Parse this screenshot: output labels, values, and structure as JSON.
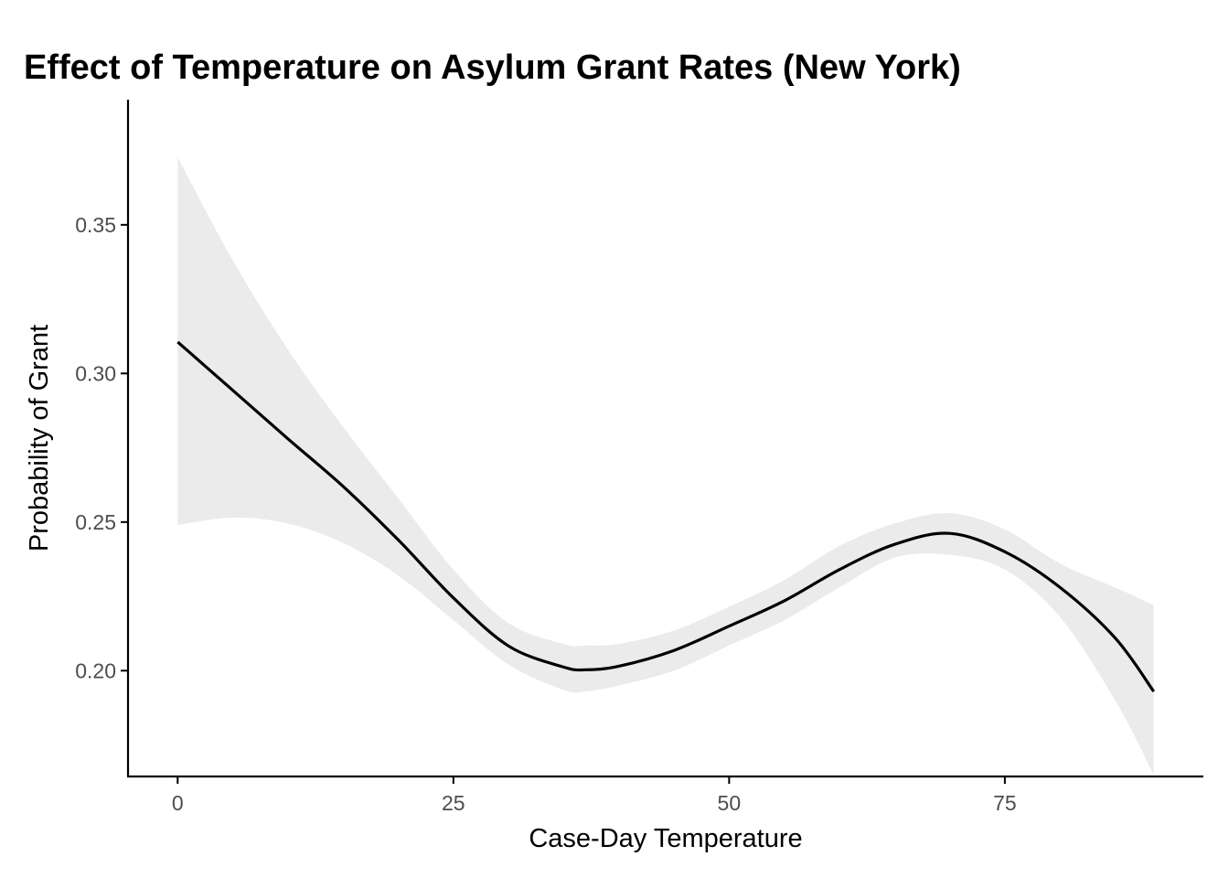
{
  "chart_data": {
    "type": "line",
    "title": "Effect of Temperature on Asylum Grant Rates (New York)",
    "xlabel": "Case-Day Temperature",
    "ylabel": "Probability of Grant",
    "xlim": [
      -4.5,
      93
    ],
    "ylim": [
      0.1644,
      0.3921
    ],
    "x_ticks": [
      0,
      25,
      50,
      75
    ],
    "x_tick_labels": [
      "0",
      "25",
      "50",
      "75"
    ],
    "y_ticks": [
      0.2,
      0.25,
      0.3,
      0.35
    ],
    "y_tick_labels": [
      "0.20",
      "0.25",
      "0.30",
      "0.35"
    ],
    "grid": false,
    "legend": "none",
    "colors": {
      "line": "#000000",
      "band": "#ebebeb",
      "axis": "#000000",
      "tick_label": "#4d4d4d"
    },
    "series": [
      {
        "x": [
          0,
          5,
          10,
          15,
          20,
          25,
          30,
          35,
          37,
          40,
          45,
          50,
          55,
          60,
          65,
          70,
          75,
          80,
          85,
          88.5
        ],
        "y": [
          0.3106,
          0.2943,
          0.278,
          0.262,
          0.244,
          0.2245,
          0.2083,
          0.2012,
          0.2003,
          0.2015,
          0.2068,
          0.215,
          0.2235,
          0.234,
          0.2425,
          0.2462,
          0.24,
          0.228,
          0.211,
          0.193
        ],
        "ci_lower": [
          0.249,
          0.2515,
          0.2495,
          0.243,
          0.232,
          0.217,
          0.202,
          0.1935,
          0.193,
          0.195,
          0.2,
          0.2085,
          0.217,
          0.228,
          0.238,
          0.239,
          0.234,
          0.218,
          0.19,
          0.165
        ],
        "ci_upper": [
          0.3728,
          0.338,
          0.308,
          0.282,
          0.258,
          0.234,
          0.216,
          0.209,
          0.2085,
          0.209,
          0.2135,
          0.2215,
          0.2305,
          0.242,
          0.2495,
          0.253,
          0.2475,
          0.236,
          0.228,
          0.222
        ]
      }
    ]
  }
}
